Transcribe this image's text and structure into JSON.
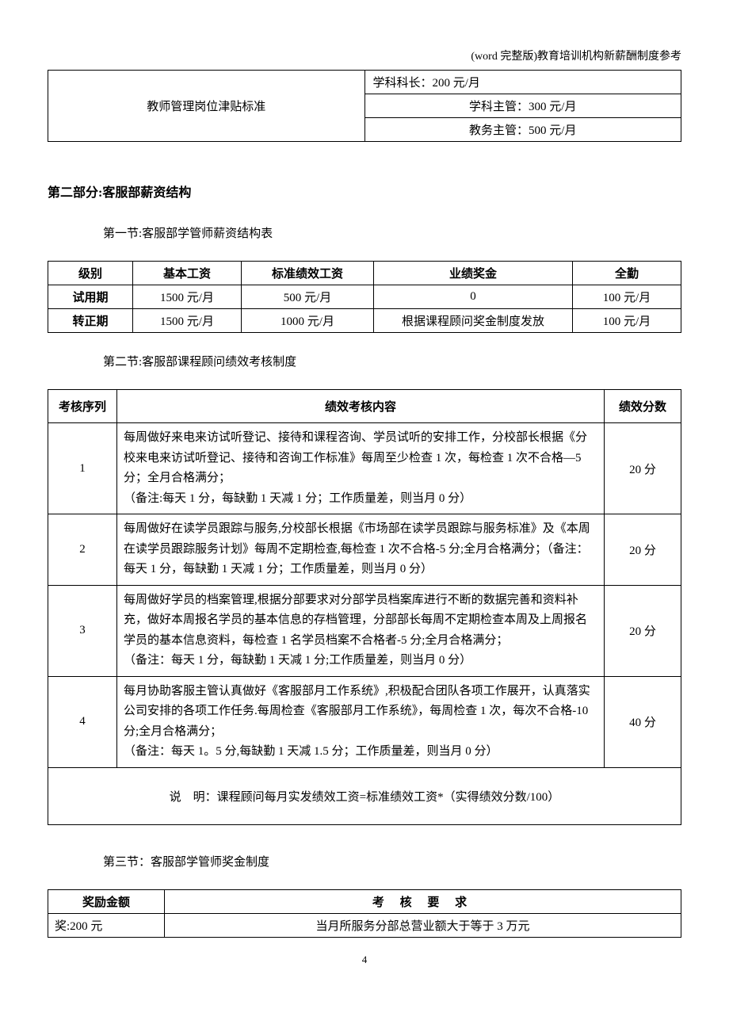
{
  "header": "(word 完整版)教育培训机构新薪酬制度参考",
  "table1": {
    "col1": "教师管理岗位津贴标准",
    "rows": [
      "学科科长：200 元/月",
      "学科主管：300 元/月",
      "教务主管：500 元/月"
    ]
  },
  "section2": {
    "heading": "第二部分:客服部薪资结构",
    "sub1": "第一节:客服部学管师薪资结构表",
    "salary_table": {
      "headers": [
        "级别",
        "基本工资",
        "标准绩效工资",
        "业绩奖金",
        "全勤"
      ],
      "rows": [
        [
          "试用期",
          "1500 元/月",
          "500 元/月",
          "0",
          "100 元/月"
        ],
        [
          "转正期",
          "1500 元/月",
          "1000 元/月",
          "根据课程顾问奖金制度发放",
          "100 元/月"
        ]
      ]
    },
    "sub2": "第二节:客服部课程顾问绩效考核制度",
    "perf_table": {
      "headers": [
        "考核序列",
        "绩效考核内容",
        "绩效分数"
      ],
      "rows": [
        {
          "seq": "1",
          "content": "每周做好来电来访试听登记、接待和课程咨询、学员试听的安排工作，分校部长根据《分校来电来访试听登记、接待和咨询工作标准》每周至少检查 1 次，每检查 1 次不合格—5 分；全月合格满分；\n（备注:每天 1 分，每缺勤 1 天减 1 分；工作质量差，则当月 0 分）",
          "score": "20 分"
        },
        {
          "seq": "2",
          "content": "每周做好在读学员跟踪与服务,分校部长根据《市场部在读学员跟踪与服务标准》及《本周在读学员跟踪服务计划》每周不定期检查,每检查 1 次不合格-5 分;全月合格满分；（备注：每天 1 分，每缺勤 1 天减 1 分；工作质量差，则当月 0 分）",
          "score": "20 分"
        },
        {
          "seq": "3",
          "content": "每周做好学员的档案管理,根据分部要求对分部学员档案库进行不断的数据完善和资料补充，做好本周报名学员的基本信息的存档管理，分部部长每周不定期检查本周及上周报名学员的基本信息资料，每检查 1 名学员档案不合格者-5 分;全月合格满分；\n（备注：每天 1 分，每缺勤 1 天减 1 分;工作质量差，则当月 0 分）",
          "score": "20 分"
        },
        {
          "seq": "4",
          "content": "每月协助客服主管认真做好《客服部月工作系统》,积极配合团队各项工作展开，认真落实公司安排的各项工作任务.每周检查《客服部月工作系统》，每周检查 1 次，每次不合格-10 分;全月合格满分；\n（备注：每天 1。5 分,每缺勤 1 天减 1.5 分；工作质量差，则当月 0 分）",
          "score": "40 分"
        }
      ],
      "note": "说　明：课程顾问每月实发绩效工资=标准绩效工资*（实得绩效分数/100）"
    },
    "sub3": "第三节：客服部学管师奖金制度",
    "bonus_table": {
      "headers": [
        "奖励金额",
        "考 核 要 求"
      ],
      "rows": [
        [
          "奖:200 元",
          "当月所服务分部总营业额大于等于 3 万元"
        ]
      ]
    }
  },
  "page_number": "4"
}
